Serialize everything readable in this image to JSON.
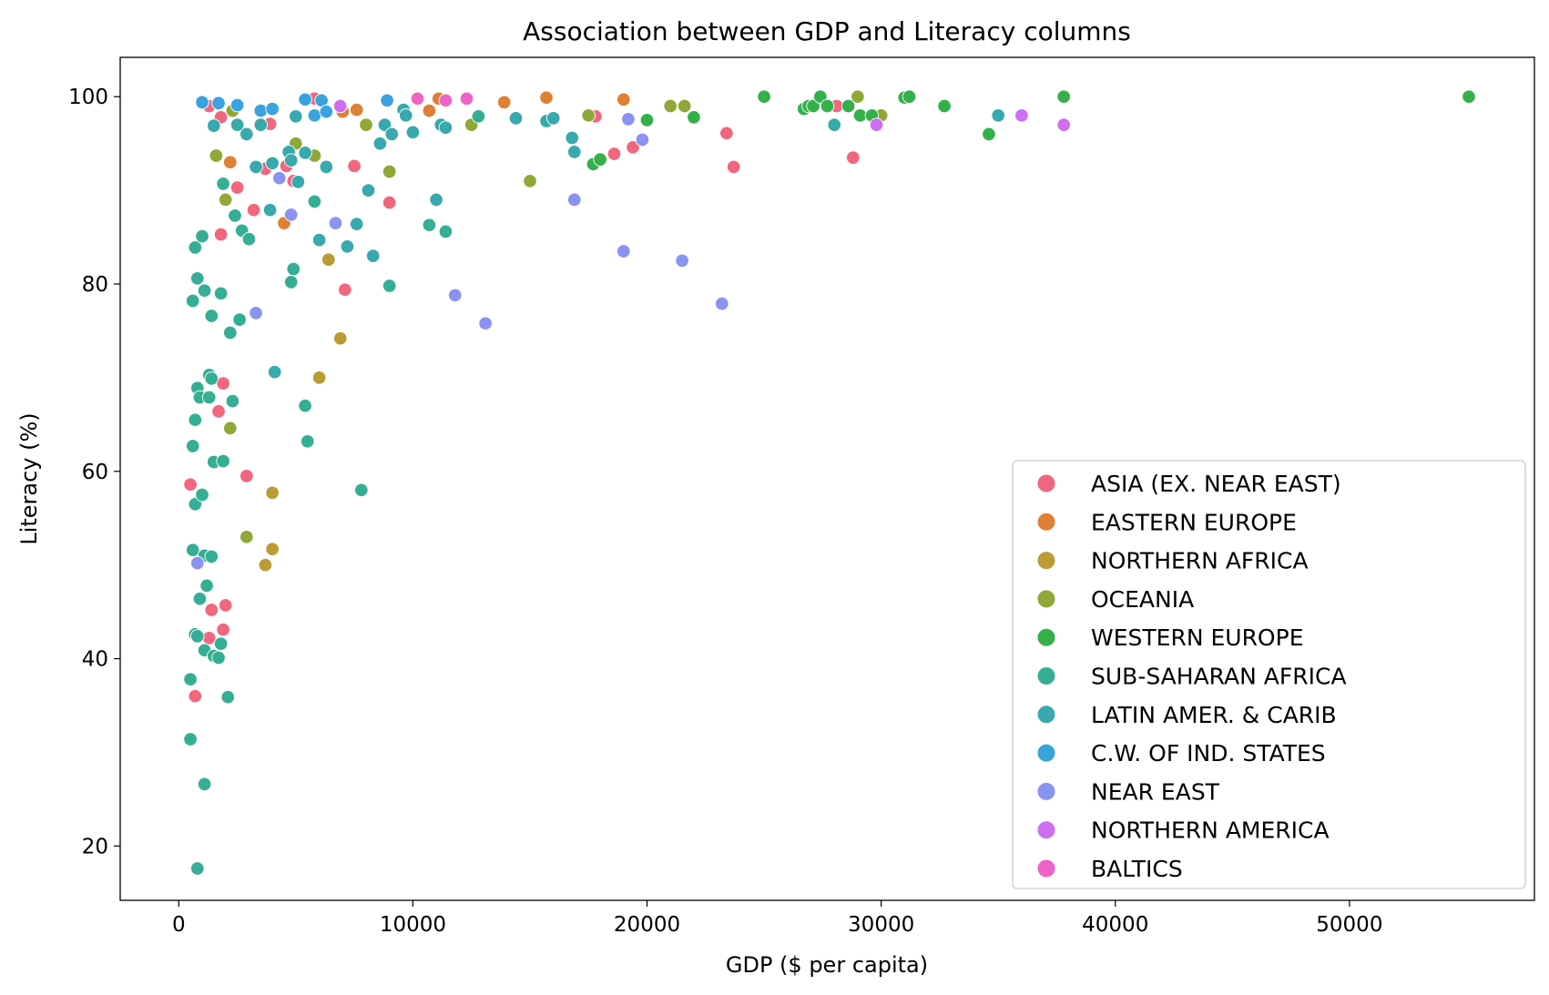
{
  "chart_data": {
    "type": "scatter",
    "title": "Association between GDP and Literacy columns",
    "xlabel": "GDP ($ per capita)",
    "ylabel": "Literacy (%)",
    "xlim": [
      -2500,
      57900
    ],
    "ylim": [
      14.2,
      104.2
    ],
    "xticks": [
      0,
      10000,
      20000,
      30000,
      40000,
      50000
    ],
    "yticks": [
      20,
      40,
      60,
      80,
      100
    ],
    "grid": false,
    "legend_position": "lower-right",
    "series": [
      {
        "name": "ASIA (EX. NEAR EAST)",
        "color": "#f0677e",
        "points": [
          [
            500,
            58.6
          ],
          [
            700,
            36
          ],
          [
            1300,
            42.2
          ],
          [
            1400,
            45.2
          ],
          [
            1700,
            66.4
          ],
          [
            1800,
            85.3
          ],
          [
            1900,
            69.4
          ],
          [
            1900,
            43.1
          ],
          [
            2000,
            45.7
          ],
          [
            2500,
            90.3
          ],
          [
            2900,
            59.5
          ],
          [
            3200,
            87.9
          ],
          [
            3700,
            92.3
          ],
          [
            3900,
            97.1
          ],
          [
            4600,
            92.6
          ],
          [
            4900,
            91
          ],
          [
            5800,
            99.8
          ],
          [
            7100,
            79.4
          ],
          [
            7500,
            92.6
          ],
          [
            9000,
            88.7
          ],
          [
            17800,
            97.9
          ],
          [
            18600,
            93.9
          ],
          [
            19400,
            94.6
          ],
          [
            23400,
            96.1
          ],
          [
            23700,
            92.5
          ],
          [
            28100,
            99
          ],
          [
            28800,
            93.5
          ],
          [
            1300,
            99
          ],
          [
            1800,
            97.8
          ]
        ]
      },
      {
        "name": "EASTERN EUROPE",
        "color": "#df8035",
        "points": [
          [
            2200,
            93
          ],
          [
            4500,
            86.5
          ],
          [
            7000,
            98.4
          ],
          [
            7600,
            98.6
          ],
          [
            10700,
            98.5
          ],
          [
            11100,
            99.8
          ],
          [
            13900,
            99.4
          ],
          [
            15700,
            99.9
          ],
          [
            19000,
            99.7
          ]
        ]
      },
      {
        "name": "NORTHERN AFRICA",
        "color": "#bb9b33",
        "points": [
          [
            3700,
            50
          ],
          [
            4000,
            57.7
          ],
          [
            4000,
            51.7
          ],
          [
            6000,
            70
          ],
          [
            6400,
            82.6
          ],
          [
            6900,
            74.2
          ]
        ]
      },
      {
        "name": "OCEANIA",
        "color": "#8fa838",
        "points": [
          [
            1600,
            93.7
          ],
          [
            2000,
            89
          ],
          [
            2200,
            64.6
          ],
          [
            2300,
            98.5
          ],
          [
            2900,
            53
          ],
          [
            5000,
            95
          ],
          [
            5800,
            93.7
          ],
          [
            8000,
            97
          ],
          [
            9000,
            92
          ],
          [
            12500,
            97
          ],
          [
            15000,
            91
          ],
          [
            17500,
            98
          ],
          [
            21000,
            99
          ],
          [
            21600,
            99
          ],
          [
            29000,
            100
          ],
          [
            30000,
            98
          ]
        ]
      },
      {
        "name": "WESTERN EUROPE",
        "color": "#34b04b",
        "points": [
          [
            17700,
            92.8
          ],
          [
            18000,
            93.3
          ],
          [
            20000,
            97.5
          ],
          [
            22000,
            97.8
          ],
          [
            25000,
            100
          ],
          [
            26700,
            98.7
          ],
          [
            26900,
            99
          ],
          [
            27100,
            99
          ],
          [
            27400,
            100
          ],
          [
            27700,
            99
          ],
          [
            28600,
            99
          ],
          [
            29100,
            98
          ],
          [
            29600,
            98
          ],
          [
            31000,
            99.9
          ],
          [
            31200,
            100
          ],
          [
            32700,
            99
          ],
          [
            34600,
            96
          ],
          [
            37800,
            100
          ],
          [
            55100,
            100
          ]
        ]
      },
      {
        "name": "SUB-SAHARAN AFRICA",
        "color": "#35ae95",
        "points": [
          [
            500,
            37.8
          ],
          [
            500,
            31.4
          ],
          [
            600,
            78.2
          ],
          [
            600,
            62.7
          ],
          [
            600,
            51.6
          ],
          [
            700,
            83.9
          ],
          [
            700,
            65.5
          ],
          [
            700,
            56.5
          ],
          [
            700,
            42.6
          ],
          [
            800,
            80.6
          ],
          [
            800,
            68.9
          ],
          [
            800,
            42.4
          ],
          [
            800,
            17.6
          ],
          [
            900,
            67.9
          ],
          [
            900,
            46.4
          ],
          [
            1000,
            85.1
          ],
          [
            1000,
            57.5
          ],
          [
            1100,
            79.3
          ],
          [
            1100,
            51
          ],
          [
            1100,
            40.9
          ],
          [
            1100,
            26.6
          ],
          [
            1200,
            47.8
          ],
          [
            1300,
            70.3
          ],
          [
            1300,
            67.9
          ],
          [
            1400,
            76.6
          ],
          [
            1400,
            69.9
          ],
          [
            1400,
            50.9
          ],
          [
            1500,
            61
          ],
          [
            1500,
            40.3
          ],
          [
            1700,
            40.1
          ],
          [
            1800,
            79
          ],
          [
            1800,
            41.6
          ],
          [
            1900,
            90.7
          ],
          [
            1900,
            61.1
          ],
          [
            2100,
            35.9
          ],
          [
            2200,
            74.8
          ],
          [
            2300,
            67.5
          ],
          [
            2400,
            87.3
          ],
          [
            2600,
            76.2
          ],
          [
            2700,
            85.7
          ],
          [
            3000,
            84.8
          ],
          [
            4800,
            80.2
          ],
          [
            4900,
            81.6
          ],
          [
            5400,
            67
          ],
          [
            5500,
            63.2
          ],
          [
            5800,
            88.8
          ],
          [
            7800,
            58
          ],
          [
            9000,
            79.8
          ],
          [
            10700,
            86.3
          ],
          [
            11400,
            85.6
          ],
          [
            12800,
            97.9
          ]
        ]
      },
      {
        "name": "LATIN AMER. & CARIB",
        "color": "#38a9ad",
        "points": [
          [
            1500,
            96.9
          ],
          [
            2500,
            97
          ],
          [
            2900,
            96
          ],
          [
            3300,
            92.5
          ],
          [
            3500,
            97
          ],
          [
            3900,
            87.9
          ],
          [
            4000,
            92.9
          ],
          [
            4100,
            70.6
          ],
          [
            4700,
            94.1
          ],
          [
            4800,
            93.2
          ],
          [
            5000,
            97.9
          ],
          [
            5100,
            90.9
          ],
          [
            5400,
            94
          ],
          [
            6000,
            84.7
          ],
          [
            6300,
            92.5
          ],
          [
            7200,
            84
          ],
          [
            7600,
            86.4
          ],
          [
            8100,
            90
          ],
          [
            8300,
            83
          ],
          [
            8600,
            95
          ],
          [
            8800,
            97
          ],
          [
            9100,
            96
          ],
          [
            9600,
            98.6
          ],
          [
            9700,
            98
          ],
          [
            10000,
            96.2
          ],
          [
            11000,
            89
          ],
          [
            11200,
            97
          ],
          [
            11400,
            96.7
          ],
          [
            14400,
            97.7
          ],
          [
            15700,
            97.4
          ],
          [
            16000,
            97.7
          ],
          [
            16800,
            95.6
          ],
          [
            16900,
            94.1
          ],
          [
            28000,
            97
          ],
          [
            35000,
            98
          ]
        ]
      },
      {
        "name": "C.W. OF IND. STATES",
        "color": "#3aa3dd",
        "points": [
          [
            1000,
            99.4
          ],
          [
            1700,
            99.3
          ],
          [
            2500,
            99.1
          ],
          [
            3500,
            98.5
          ],
          [
            4000,
            98.7
          ],
          [
            5400,
            99.7
          ],
          [
            5800,
            98
          ],
          [
            6100,
            99.6
          ],
          [
            6300,
            98.4
          ],
          [
            8900,
            99.6
          ]
        ]
      },
      {
        "name": "NEAR EAST",
        "color": "#8b93f0",
        "points": [
          [
            800,
            50.2
          ],
          [
            3300,
            76.9
          ],
          [
            4300,
            91.3
          ],
          [
            4800,
            87.4
          ],
          [
            6700,
            86.5
          ],
          [
            11800,
            78.8
          ],
          [
            13100,
            75.8
          ],
          [
            16900,
            89
          ],
          [
            19000,
            83.5
          ],
          [
            19200,
            97.6
          ],
          [
            19800,
            95.4
          ],
          [
            21500,
            82.5
          ],
          [
            23200,
            77.9
          ]
        ]
      },
      {
        "name": "NORTHERN AMERICA",
        "color": "#cf6ef0",
        "points": [
          [
            6900,
            99
          ],
          [
            29800,
            97
          ],
          [
            36000,
            98
          ],
          [
            37800,
            97
          ]
        ]
      },
      {
        "name": "BALTICS",
        "color": "#ef63c8",
        "points": [
          [
            10200,
            99.8
          ],
          [
            11400,
            99.6
          ],
          [
            12300,
            99.8
          ]
        ]
      }
    ]
  }
}
